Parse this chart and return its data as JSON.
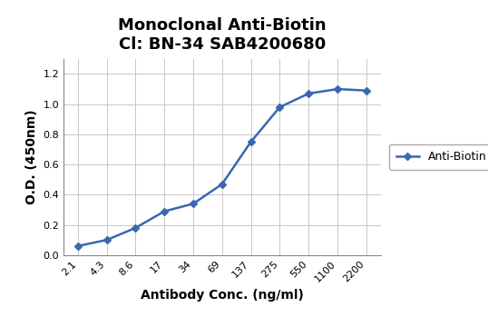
{
  "title_line1": "Monoclonal Anti-Biotin",
  "title_line2": "Cl: BN-34 SAB4200680",
  "xlabel": "Antibody Conc. (ng/ml)",
  "ylabel": "O.D. (450nm)",
  "x_labels": [
    "2.1",
    "4.3",
    "8.6",
    "17",
    "34",
    "69",
    "137",
    "275",
    "550",
    "1100",
    "2200"
  ],
  "y_values": [
    0.06,
    0.1,
    0.18,
    0.29,
    0.34,
    0.47,
    0.75,
    0.98,
    1.07,
    1.1,
    1.09
  ],
  "ylim": [
    0,
    1.3
  ],
  "yticks": [
    0,
    0.2,
    0.4,
    0.6,
    0.8,
    1.0,
    1.2
  ],
  "line_color": "#3a67b0",
  "marker_style": "D",
  "marker_size": 4,
  "legend_label": "Anti-Biotin",
  "title_fontsize": 13,
  "axis_label_fontsize": 10,
  "tick_fontsize": 8,
  "legend_fontsize": 9,
  "background_color": "#ffffff",
  "plot_bg_color": "#ffffff",
  "grid_color": "#c8c8c8"
}
